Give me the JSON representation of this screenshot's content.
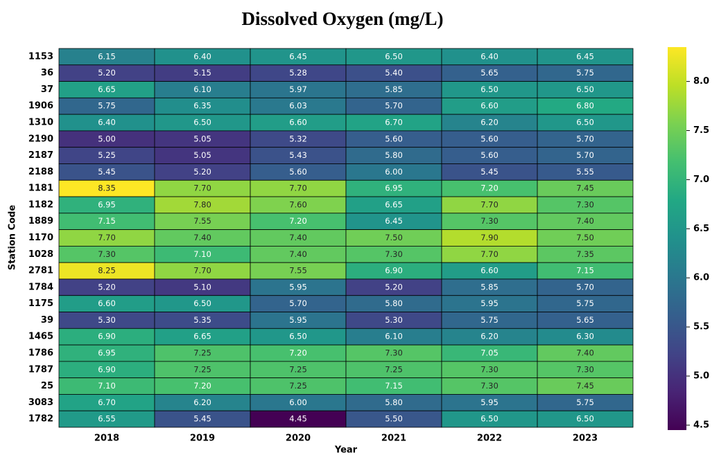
{
  "chart_data": {
    "type": "heatmap",
    "title": "Dissolved Oxygen (mg/L)",
    "xlabel": "Year",
    "ylabel": "Station Code",
    "categories": [
      "2018",
      "2019",
      "2020",
      "2021",
      "2022",
      "2023"
    ],
    "rows": [
      "1153",
      "36",
      "37",
      "1906",
      "1310",
      "2190",
      "2187",
      "2188",
      "1181",
      "1182",
      "1889",
      "1170",
      "1028",
      "2781",
      "1784",
      "1175",
      "39",
      "1465",
      "1786",
      "1787",
      "25",
      "3083",
      "1782"
    ],
    "values": [
      [
        6.15,
        6.4,
        6.45,
        6.5,
        6.4,
        6.45
      ],
      [
        5.2,
        5.15,
        5.28,
        5.4,
        5.65,
        5.75
      ],
      [
        6.65,
        6.1,
        5.97,
        5.85,
        6.5,
        6.5
      ],
      [
        5.75,
        6.35,
        6.03,
        5.7,
        6.6,
        6.8
      ],
      [
        6.4,
        6.5,
        6.6,
        6.7,
        6.2,
        6.5
      ],
      [
        5.0,
        5.05,
        5.32,
        5.6,
        5.6,
        5.7
      ],
      [
        5.25,
        5.05,
        5.43,
        5.8,
        5.6,
        5.7
      ],
      [
        5.45,
        5.2,
        5.6,
        6.0,
        5.45,
        5.55
      ],
      [
        8.35,
        7.7,
        7.7,
        6.95,
        7.2,
        7.45
      ],
      [
        6.95,
        7.8,
        7.6,
        6.65,
        7.7,
        7.3
      ],
      [
        7.15,
        7.55,
        7.2,
        6.45,
        7.3,
        7.4
      ],
      [
        7.7,
        7.4,
        7.4,
        7.5,
        7.9,
        7.5
      ],
      [
        7.3,
        7.1,
        7.4,
        7.3,
        7.7,
        7.35
      ],
      [
        8.25,
        7.7,
        7.55,
        6.9,
        6.6,
        7.15
      ],
      [
        5.2,
        5.1,
        5.95,
        5.2,
        5.85,
        5.7
      ],
      [
        6.6,
        6.5,
        5.7,
        5.8,
        5.95,
        5.75
      ],
      [
        5.3,
        5.35,
        5.95,
        5.3,
        5.75,
        5.65
      ],
      [
        6.9,
        6.65,
        6.5,
        6.1,
        6.2,
        6.3
      ],
      [
        6.95,
        7.25,
        7.2,
        7.3,
        7.05,
        7.4
      ],
      [
        6.9,
        7.25,
        7.25,
        7.25,
        7.3,
        7.3
      ],
      [
        7.1,
        7.2,
        7.25,
        7.15,
        7.3,
        7.45
      ],
      [
        6.7,
        6.2,
        6.0,
        5.8,
        5.95,
        5.75
      ],
      [
        6.55,
        5.45,
        4.45,
        5.5,
        6.5,
        6.5
      ]
    ],
    "value_labels": [
      [
        "6.15",
        "6.40",
        "6.45",
        "6.50",
        "6.40",
        "6.45"
      ],
      [
        "5.20",
        "5.15",
        "5.28",
        "5.40",
        "5.65",
        "5.75"
      ],
      [
        "6.65",
        "6.10",
        "5.97",
        "5.85",
        "6.50",
        "6.50"
      ],
      [
        "5.75",
        "6.35",
        "6.03",
        "5.70",
        "6.60",
        "6.80"
      ],
      [
        "6.40",
        "6.50",
        "6.60",
        "6.70",
        "6.20",
        "6.50"
      ],
      [
        "5.00",
        "5.05",
        "5.32",
        "5.60",
        "5.60",
        "5.70"
      ],
      [
        "5.25",
        "5.05",
        "5.43",
        "5.80",
        "5.60",
        "5.70"
      ],
      [
        "5.45",
        "5.20",
        "5.60",
        "6.00",
        "5.45",
        "5.55"
      ],
      [
        "8.35",
        "7.70",
        "7.70",
        "6.95",
        "7.20",
        "7.45"
      ],
      [
        "6.95",
        "7.80",
        "7.60",
        "6.65",
        "7.70",
        "7.30"
      ],
      [
        "7.15",
        "7.55",
        "7.20",
        "6.45",
        "7.30",
        "7.40"
      ],
      [
        "7.70",
        "7.40",
        "7.40",
        "7.50",
        "7.90",
        "7.50"
      ],
      [
        "7.30",
        "7.10",
        "7.40",
        "7.30",
        "7.70",
        "7.35"
      ],
      [
        "8.25",
        "7.70",
        "7.55",
        "6.90",
        "6.60",
        "7.15"
      ],
      [
        "5.20",
        "5.10",
        "5.95",
        "5.20",
        "5.85",
        "5.70"
      ],
      [
        "6.60",
        "6.50",
        "5.70",
        "5.80",
        "5.95",
        "5.75"
      ],
      [
        "5.30",
        "5.35",
        "5.95",
        "5.30",
        "5.75",
        "5.65"
      ],
      [
        "6.90",
        "6.65",
        "6.50",
        "6.10",
        "6.20",
        "6.30"
      ],
      [
        "6.95",
        "7.25",
        "7.20",
        "7.30",
        "7.05",
        "7.40"
      ],
      [
        "6.90",
        "7.25",
        "7.25",
        "7.25",
        "7.30",
        "7.30"
      ],
      [
        "7.10",
        "7.20",
        "7.25",
        "7.15",
        "7.30",
        "7.45"
      ],
      [
        "6.70",
        "6.20",
        "6.00",
        "5.80",
        "5.95",
        "5.75"
      ],
      [
        "6.55",
        "5.45",
        "4.45",
        "5.50",
        "6.50",
        "6.50"
      ]
    ],
    "colormap": "viridis",
    "clim": [
      4.45,
      8.35
    ],
    "cticks": [
      4.5,
      {
        "value": 5,
        "label": "5.0"
      },
      5.5,
      {
        "value": 6,
        "label": "6.0"
      },
      6.5,
      {
        "value": 7,
        "label": "7.0"
      },
      7.5,
      {
        "value": 8,
        "label": "8.0"
      }
    ]
  }
}
